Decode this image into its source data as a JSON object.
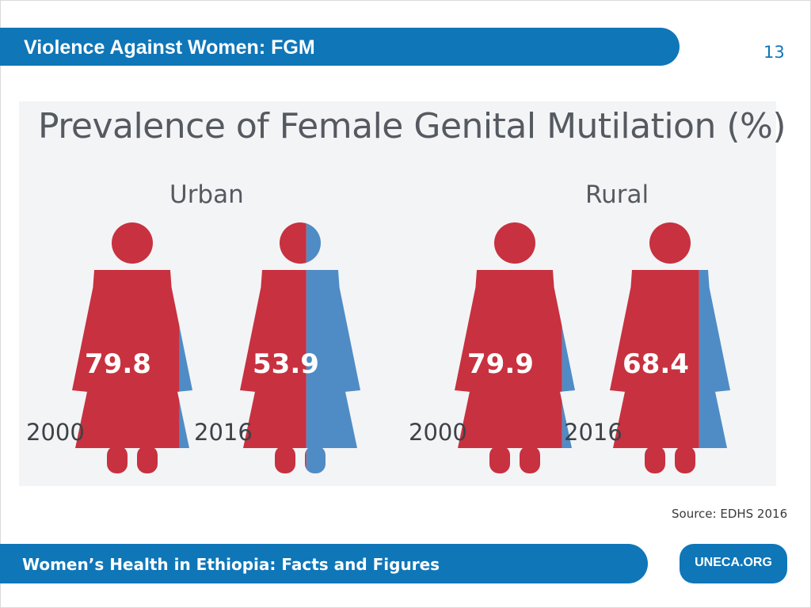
{
  "slide": {
    "title": "Violence Against Women: FGM",
    "page_number": "13",
    "source": "Source: EDHS 2016",
    "footer": "Women’s Health in Ethiopia: Facts and Figures",
    "footer_link": "UNECA.ORG"
  },
  "colors": {
    "brand_blue": "#0f76b8",
    "affected_red": "#c8313f",
    "remainder_blue": "#4f8cc5"
  },
  "chart_data": {
    "type": "pictograph",
    "title": "Prevalence of Female Genital Mutilation (%)",
    "groups": [
      {
        "name": "Urban",
        "entries": [
          {
            "year": "2000",
            "value": 79.8,
            "label": "79.8"
          },
          {
            "year": "2016",
            "value": 53.9,
            "label": "53.9"
          }
        ]
      },
      {
        "name": "Rural",
        "entries": [
          {
            "year": "2000",
            "value": 79.9,
            "label": "79.9"
          },
          {
            "year": "2016",
            "value": 68.4,
            "label": "68.4"
          }
        ]
      }
    ]
  }
}
